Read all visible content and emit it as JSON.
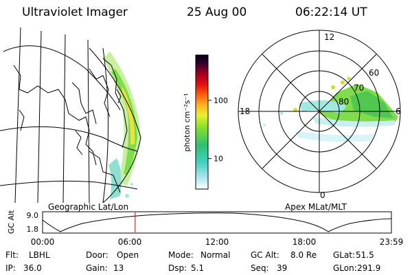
{
  "header": {
    "instrument": "Ultraviolet Imager",
    "date": "25 Aug 00",
    "time": "06:22:14 UT"
  },
  "left_panel": {
    "caption": "Geographic Lat/Lon"
  },
  "colorbar": {
    "label": "photon cm⁻²s⁻¹",
    "scale": "log",
    "range": [
      3,
      600
    ],
    "ticks": [
      {
        "value": 100,
        "label": "100"
      },
      {
        "value": 10,
        "label": "10"
      }
    ]
  },
  "polar_plot": {
    "caption": "Apex MLat/MLT",
    "mlt_labels": {
      "top": "12",
      "left": "18",
      "right": "6",
      "bottom": "0"
    },
    "mlat_labels": [
      "60",
      "70",
      "80"
    ]
  },
  "altitude_plot": {
    "ylabel": "GC Alt",
    "ytick_labels": [
      "9.0",
      "1.8"
    ],
    "xtick_labels": [
      "00:00",
      "06:00",
      "12:00",
      "18:00",
      "23:59"
    ],
    "marker_hours": 6.37,
    "marker_color": "#cc0000"
  },
  "info_rows": [
    [
      {
        "label": "Flt:",
        "value": "LBHL"
      },
      {
        "label": "Door:",
        "value": "Open"
      },
      {
        "label": "Mode:",
        "value": "Normal"
      },
      {
        "label": "GC Alt:",
        "value": "8.0 Re"
      },
      {
        "label": "GLat:",
        "value": "51.5"
      }
    ],
    [
      {
        "label": "IP:",
        "value": "36.0"
      },
      {
        "label": "Gain:",
        "value": "13"
      },
      {
        "label": "Dsp:",
        "value": "5.1"
      },
      {
        "label": "Seq:",
        "value": "39"
      },
      {
        "label": "GLon:",
        "value": "291.9"
      }
    ]
  ]
}
